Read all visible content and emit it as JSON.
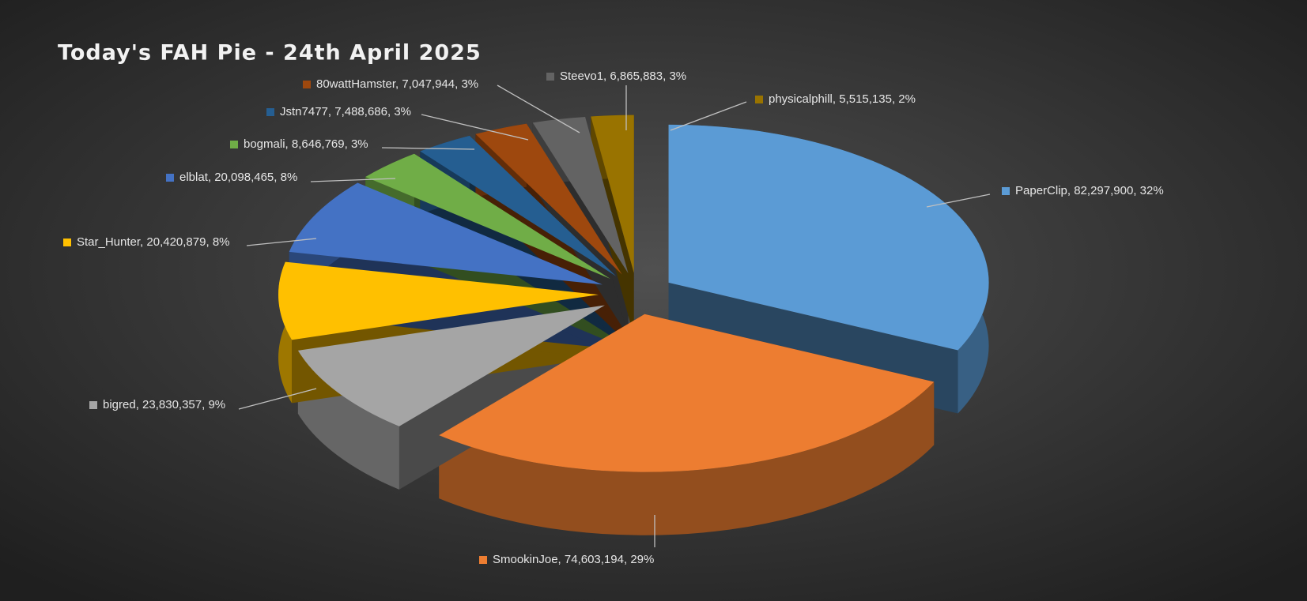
{
  "chart_data": {
    "type": "pie3d",
    "title": "Today's FAH Pie - 24th April 2025",
    "categories": [
      "PaperClip",
      "SmookinJoe",
      "bigred",
      "Star_Hunter",
      "elblat",
      "bogmali",
      "Jstn7477",
      "80wattHamster",
      "Steevo1",
      "physicalphill"
    ],
    "values": [
      82297900,
      74603194,
      23830357,
      20420879,
      20098465,
      8646769,
      7488686,
      7047944,
      6865883,
      5515135
    ],
    "value_labels": [
      "82,297,900",
      "74,603,194",
      "23,830,357",
      "20,420,879",
      "20,098,465",
      "8,646,769",
      "7,488,686",
      "7,047,944",
      "6,865,883",
      "5,515,135"
    ],
    "percent_labels": [
      "32%",
      "29%",
      "9%",
      "8%",
      "8%",
      "3%",
      "3%",
      "3%",
      "3%",
      "2%"
    ],
    "colors": [
      "#5b9bd5",
      "#ed7d31",
      "#a5a5a5",
      "#ffc000",
      "#4472c4",
      "#70ad47",
      "#255e91",
      "#9e480e",
      "#636363",
      "#997300"
    ]
  }
}
